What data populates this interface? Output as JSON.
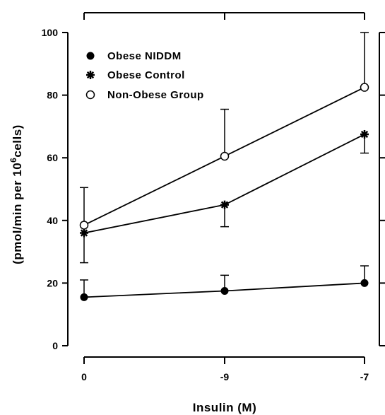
{
  "chart_data": {
    "type": "line",
    "title": "",
    "xlabel": "Insulin (M)",
    "ylabel": "(pmol/min per 10^6 cells)",
    "ylabel_parts": {
      "prefix": "(pmol/min per 10",
      "superscript": "6",
      "suffix": "cells)"
    },
    "categories": [
      "0",
      "-9",
      "-7"
    ],
    "ylim": [
      0,
      100
    ],
    "yticks": [
      0,
      20,
      40,
      60,
      80,
      100
    ],
    "legend_position": "top-left",
    "grid": false,
    "series": [
      {
        "name": "Obese NIDDM",
        "marker": "filled-circle",
        "values": [
          15.5,
          17.5,
          20
        ],
        "error": [
          5.5,
          5,
          5.5
        ]
      },
      {
        "name": "Obese Control",
        "marker": "star",
        "values": [
          36,
          45,
          67.5
        ],
        "error": [
          9.5,
          7,
          6
        ]
      },
      {
        "name": "Non-Obese Group",
        "marker": "open-circle",
        "values": [
          38.5,
          60.5,
          82.5
        ],
        "error": [
          12,
          15,
          17.5
        ]
      }
    ],
    "error_direction": [
      "down",
      "up"
    ]
  }
}
